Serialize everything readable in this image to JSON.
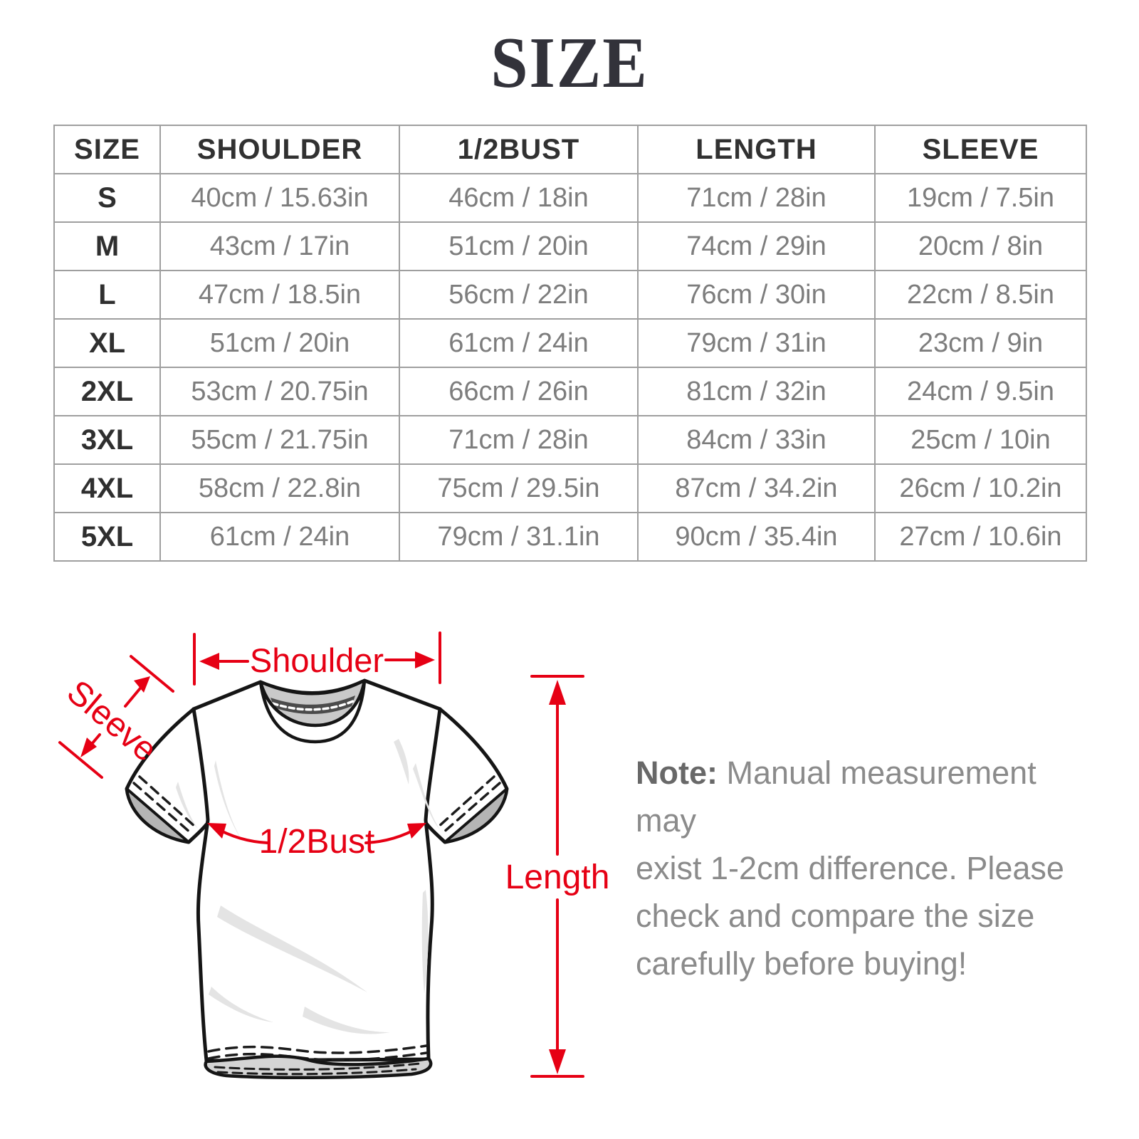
{
  "title": "SIZE",
  "table": {
    "headers": [
      "SIZE",
      "SHOULDER",
      "1/2BUST",
      "LENGTH",
      "SLEEVE"
    ],
    "rows": [
      {
        "size": "S",
        "shoulder": "40cm / 15.63in",
        "bust": "46cm / 18in",
        "length": "71cm / 28in",
        "sleeve": "19cm / 7.5in"
      },
      {
        "size": "M",
        "shoulder": "43cm / 17in",
        "bust": "51cm / 20in",
        "length": "74cm / 29in",
        "sleeve": "20cm / 8in"
      },
      {
        "size": "L",
        "shoulder": "47cm / 18.5in",
        "bust": "56cm / 22in",
        "length": "76cm / 30in",
        "sleeve": "22cm / 8.5in"
      },
      {
        "size": "XL",
        "shoulder": "51cm / 20in",
        "bust": "61cm / 24in",
        "length": "79cm / 31in",
        "sleeve": "23cm / 9in"
      },
      {
        "size": "2XL",
        "shoulder": "53cm / 20.75in",
        "bust": "66cm / 26in",
        "length": "81cm / 32in",
        "sleeve": "24cm / 9.5in"
      },
      {
        "size": "3XL",
        "shoulder": "55cm / 21.75in",
        "bust": "71cm / 28in",
        "length": "84cm / 33in",
        "sleeve": "25cm / 10in"
      },
      {
        "size": "4XL",
        "shoulder": "58cm / 22.8in",
        "bust": "75cm / 29.5in",
        "length": "87cm / 34.2in",
        "sleeve": "26cm / 10.2in"
      },
      {
        "size": "5XL",
        "shoulder": "61cm / 24in",
        "bust": "79cm / 31.1in",
        "length": "90cm / 35.4in",
        "sleeve": "27cm / 10.6in"
      }
    ]
  },
  "diagram": {
    "labels": {
      "shoulder": "Shoulder",
      "sleeve": "Sleeve",
      "bust": "1/2Bust",
      "length": "Length"
    },
    "annotation_color": "#e60014"
  },
  "note": {
    "label": "Note:",
    "lines": [
      "Manual measurement may",
      "exist 1-2cm difference. Please",
      "check and compare the size",
      "carefully before buying!"
    ]
  },
  "colors": {
    "title_text": "#32323a",
    "header_text": "#313131",
    "cell_text": "#7d7d7d",
    "table_border": "#9f9f9f",
    "note_text": "#8b8b8b",
    "annotation_red": "#e60014"
  }
}
